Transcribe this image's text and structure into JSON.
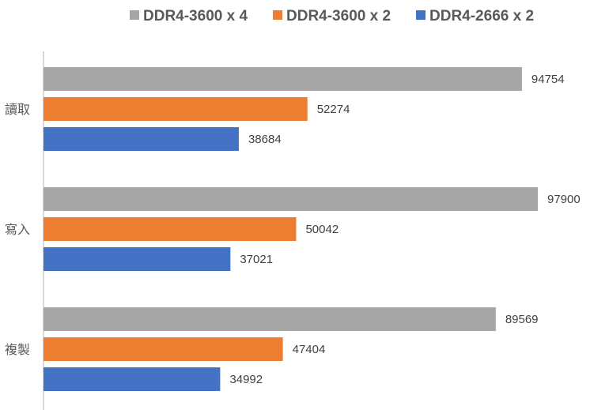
{
  "chart_data": {
    "type": "bar",
    "orientation": "horizontal",
    "title": "",
    "xlabel": "",
    "ylabel": "",
    "categories": [
      "讀取",
      "寫入",
      "複製"
    ],
    "series": [
      {
        "name": "DDR4-3600 x 4",
        "color": "#A5A5A5",
        "values": [
          94754,
          97900,
          89569
        ]
      },
      {
        "name": "DDR4-3600 x 2",
        "color": "#ED7D31",
        "values": [
          52274,
          50042,
          47404
        ]
      },
      {
        "name": "DDR4-2666 x 2",
        "color": "#4472C4",
        "values": [
          38684,
          37021,
          34992
        ]
      }
    ],
    "xlim": [
      0,
      112000
    ],
    "grid": false,
    "x_axis_visible": false,
    "data_labels": true,
    "legend_position": "top"
  }
}
